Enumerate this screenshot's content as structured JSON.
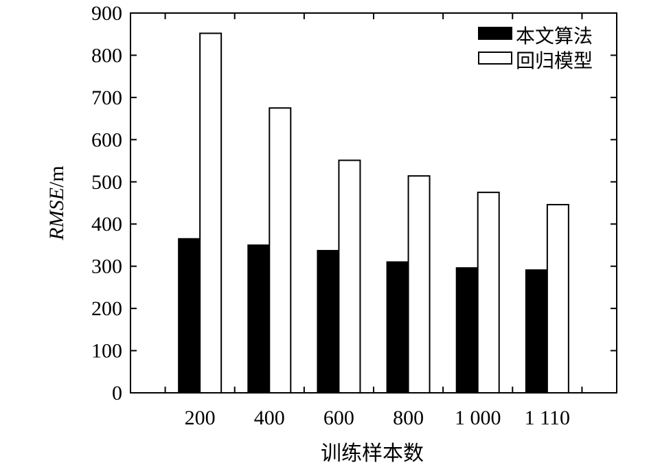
{
  "chart_data": {
    "type": "bar",
    "categories": [
      "200",
      "400",
      "600",
      "800",
      "1 000",
      "1 110"
    ],
    "series": [
      {
        "name": "本文算法",
        "color": "#000000",
        "values": [
          365,
          350,
          337,
          310,
          296,
          291
        ]
      },
      {
        "name": "回归模型",
        "color": "#ffffff",
        "values": [
          852,
          675,
          551,
          514,
          475,
          446
        ]
      }
    ],
    "xlabel": "训练样本数",
    "ylabel": {
      "italic": "RMSE",
      "unit": "/m"
    },
    "ylim": [
      0,
      900
    ],
    "yticks": [
      0,
      100,
      200,
      300,
      400,
      500,
      600,
      700,
      800,
      900
    ],
    "grid": false,
    "legend_position": "top-right"
  }
}
